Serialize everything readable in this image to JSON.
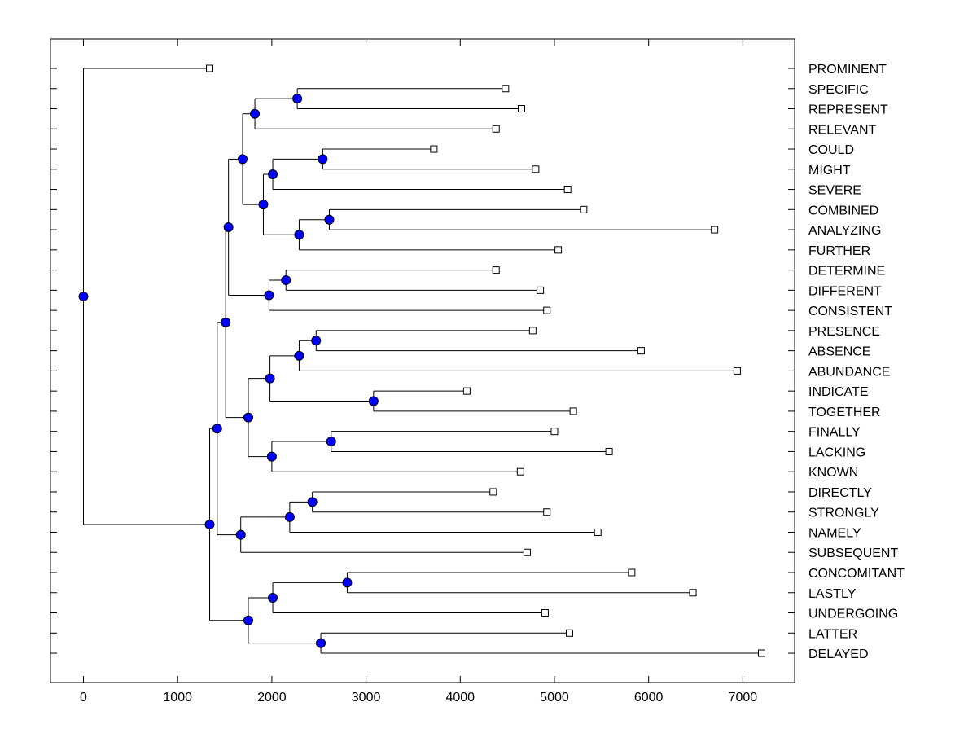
{
  "chart_data": {
    "type": "dendrogram",
    "title": "",
    "xlabel": "",
    "ylabel": "",
    "xlim": [
      -350,
      7550
    ],
    "x_ticks": [
      0,
      1000,
      2000,
      3000,
      4000,
      5000,
      6000,
      7000
    ],
    "x_tick_labels": [
      "0",
      "1000",
      "2000",
      "3000",
      "4000",
      "5000",
      "6000",
      "7000"
    ],
    "leaf_marker_color": "#ffffff",
    "node_marker_color": "#0000ff",
    "line_color": "#000000",
    "leaves": [
      {
        "label": "PROMINENT",
        "value": 1340
      },
      {
        "label": "SPECIFIC",
        "value": 4480
      },
      {
        "label": "REPRESENT",
        "value": 4650
      },
      {
        "label": "RELEVANT",
        "value": 4380
      },
      {
        "label": "COULD",
        "value": 3720
      },
      {
        "label": "MIGHT",
        "value": 4800
      },
      {
        "label": "SEVERE",
        "value": 5140
      },
      {
        "label": "COMBINED",
        "value": 5310
      },
      {
        "label": "ANALYZING",
        "value": 6700
      },
      {
        "label": "FURTHER",
        "value": 5040
      },
      {
        "label": "DETERMINE",
        "value": 4380
      },
      {
        "label": "DIFFERENT",
        "value": 4850
      },
      {
        "label": "CONSISTENT",
        "value": 4920
      },
      {
        "label": "PRESENCE",
        "value": 4770
      },
      {
        "label": "ABSENCE",
        "value": 5920
      },
      {
        "label": "ABUNDANCE",
        "value": 6940
      },
      {
        "label": "INDICATE",
        "value": 4070
      },
      {
        "label": "TOGETHER",
        "value": 5200
      },
      {
        "label": "FINALLY",
        "value": 5000
      },
      {
        "label": "LACKING",
        "value": 5580
      },
      {
        "label": "KNOWN",
        "value": 4640
      },
      {
        "label": "DIRECTLY",
        "value": 4350
      },
      {
        "label": "STRONGLY",
        "value": 4920
      },
      {
        "label": "NAMELY",
        "value": 5460
      },
      {
        "label": "SUBSEQUENT",
        "value": 4710
      },
      {
        "label": "CONCOMITANT",
        "value": 5820
      },
      {
        "label": "LASTLY",
        "value": 6470
      },
      {
        "label": "UNDERGOING",
        "value": 4900
      },
      {
        "label": "LATTER",
        "value": 5160
      },
      {
        "label": "DELAYED",
        "value": 7200
      }
    ],
    "merges": [
      {
        "id": "n1",
        "children": [
          "L1",
          "L2"
        ],
        "value": 2270
      },
      {
        "id": "n2",
        "children": [
          "n1",
          "L3"
        ],
        "value": 1820
      },
      {
        "id": "n3",
        "children": [
          "L4",
          "L5"
        ],
        "value": 2540
      },
      {
        "id": "n4",
        "children": [
          "n3",
          "L6"
        ],
        "value": 2010
      },
      {
        "id": "n5",
        "children": [
          "L7",
          "L8"
        ],
        "value": 2610
      },
      {
        "id": "n6",
        "children": [
          "n5",
          "L9"
        ],
        "value": 2290
      },
      {
        "id": "n7",
        "children": [
          "n4",
          "n6"
        ],
        "value": 1910
      },
      {
        "id": "n8",
        "children": [
          "n2",
          "n7"
        ],
        "value": 1690
      },
      {
        "id": "n9",
        "children": [
          "L10",
          "L11"
        ],
        "value": 2150
      },
      {
        "id": "n10",
        "children": [
          "n9",
          "L12"
        ],
        "value": 1970
      },
      {
        "id": "n11",
        "children": [
          "n8",
          "n10"
        ],
        "value": 1540
      },
      {
        "id": "n12",
        "children": [
          "L13",
          "L14"
        ],
        "value": 2470
      },
      {
        "id": "n13",
        "children": [
          "n12",
          "L15"
        ],
        "value": 2290
      },
      {
        "id": "n14",
        "children": [
          "L16",
          "L17"
        ],
        "value": 3080
      },
      {
        "id": "n15",
        "children": [
          "n13",
          "n14"
        ],
        "value": 1980
      },
      {
        "id": "n16",
        "children": [
          "L18",
          "L19"
        ],
        "value": 2630
      },
      {
        "id": "n17",
        "children": [
          "n16",
          "L20"
        ],
        "value": 2000
      },
      {
        "id": "n18",
        "children": [
          "n15",
          "n17"
        ],
        "value": 1750
      },
      {
        "id": "n19",
        "children": [
          "n11",
          "n18"
        ],
        "value": 1510
      },
      {
        "id": "n20",
        "children": [
          "L21",
          "L22"
        ],
        "value": 2430
      },
      {
        "id": "n21",
        "children": [
          "n20",
          "L23"
        ],
        "value": 2190
      },
      {
        "id": "n22",
        "children": [
          "n21",
          "L24"
        ],
        "value": 1670
      },
      {
        "id": "n23",
        "children": [
          "n19",
          "n22"
        ],
        "value": 1420
      },
      {
        "id": "n24",
        "children": [
          "L25",
          "L26"
        ],
        "value": 2800
      },
      {
        "id": "n25",
        "children": [
          "n24",
          "L27"
        ],
        "value": 2010
      },
      {
        "id": "n26",
        "children": [
          "L28",
          "L29"
        ],
        "value": 2520
      },
      {
        "id": "n27",
        "children": [
          "n25",
          "n26"
        ],
        "value": 1750
      },
      {
        "id": "n28",
        "children": [
          "n23",
          "n27"
        ],
        "value": 1340
      },
      {
        "id": "n29",
        "children": [
          "L0",
          "n28"
        ],
        "value": 0
      }
    ]
  }
}
